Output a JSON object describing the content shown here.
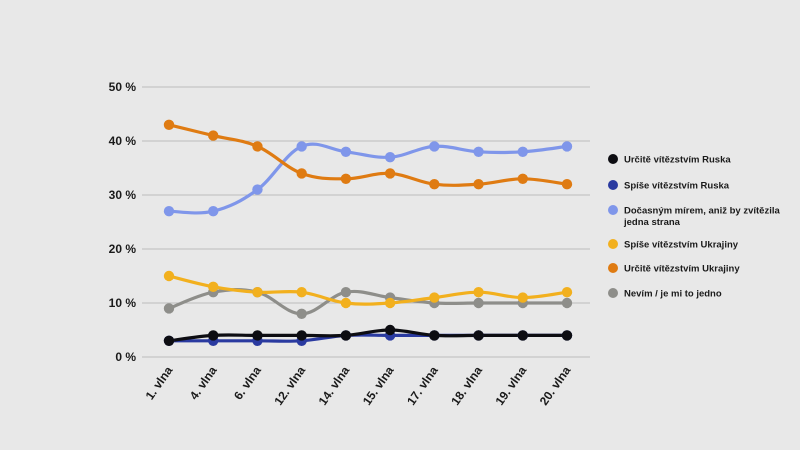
{
  "chart_data": {
    "type": "line",
    "categories": [
      "1. vlna",
      "4. vlna",
      "6. vlna",
      "12. vlna",
      "14. vlna",
      "15. vlna",
      "17. vlna",
      "18. vlna",
      "19. vlna",
      "20. vlna"
    ],
    "ylim": [
      0,
      50
    ],
    "yticks": [
      0,
      10,
      20,
      30,
      40,
      50
    ],
    "ytick_labels": [
      "0 %",
      "10 %",
      "20 %",
      "30 %",
      "40 %",
      "50 %"
    ],
    "grid": true,
    "legend_position": "right",
    "series": [
      {
        "name": "Určitě vítězstvím Ruska",
        "color": "#0d0d12",
        "values": [
          3,
          4,
          4,
          4,
          4,
          5,
          4,
          4,
          4,
          4
        ]
      },
      {
        "name": "Spíše vítězstvím Ruska",
        "color": "#2a3aa0",
        "values": [
          3,
          3,
          3,
          3,
          4,
          4,
          4,
          4,
          4,
          4
        ]
      },
      {
        "name": "Dočasným mírem, aniž by zvítězila jedna strana",
        "color": "#7f96ea",
        "values": [
          27,
          27,
          31,
          39,
          38,
          37,
          39,
          38,
          38,
          39
        ]
      },
      {
        "name": "Spíše vítězstvím Ukrajiny",
        "color": "#f2b01e",
        "values": [
          15,
          13,
          12,
          12,
          10,
          10,
          11,
          12,
          11,
          12
        ]
      },
      {
        "name": "Určitě vítězstvím Ukrajiny",
        "color": "#df7b12",
        "values": [
          43,
          41,
          39,
          34,
          33,
          34,
          32,
          32,
          33,
          32
        ]
      },
      {
        "name": "Nevím / je mi to jedno",
        "color": "#8e8e8a",
        "values": [
          9,
          12,
          12,
          8,
          12,
          11,
          10,
          10,
          10,
          10
        ]
      }
    ]
  }
}
